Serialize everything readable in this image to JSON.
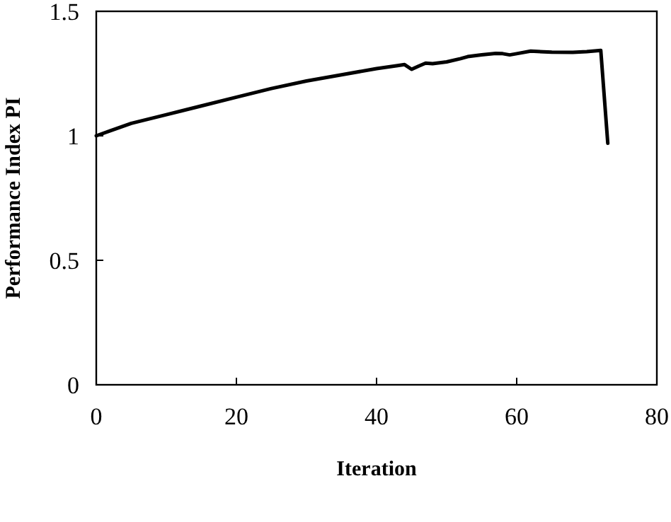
{
  "chart_data": {
    "type": "line",
    "xlabel": "Iteration",
    "ylabel": "Performance Index PI",
    "xlim": [
      0,
      80
    ],
    "ylim": [
      0,
      1.5
    ],
    "xticks": [
      0,
      20,
      40,
      60,
      80
    ],
    "yticks": [
      0,
      0.5,
      1,
      1.5
    ],
    "grid": false,
    "marker": "none",
    "line_style": "solid",
    "series": [
      {
        "color": "#000000",
        "x": [
          0,
          2,
          5,
          10,
          15,
          20,
          25,
          30,
          35,
          40,
          43,
          44,
          45,
          46,
          47,
          48,
          50,
          52,
          53,
          55,
          57,
          58,
          59,
          60,
          62,
          65,
          68,
          70,
          72,
          73
        ],
        "values": [
          1.0,
          1.02,
          1.05,
          1.085,
          1.12,
          1.155,
          1.19,
          1.22,
          1.245,
          1.27,
          1.282,
          1.286,
          1.267,
          1.28,
          1.292,
          1.29,
          1.297,
          1.31,
          1.318,
          1.325,
          1.331,
          1.33,
          1.325,
          1.33,
          1.34,
          1.336,
          1.335,
          1.338,
          1.343,
          0.97
        ]
      }
    ]
  }
}
